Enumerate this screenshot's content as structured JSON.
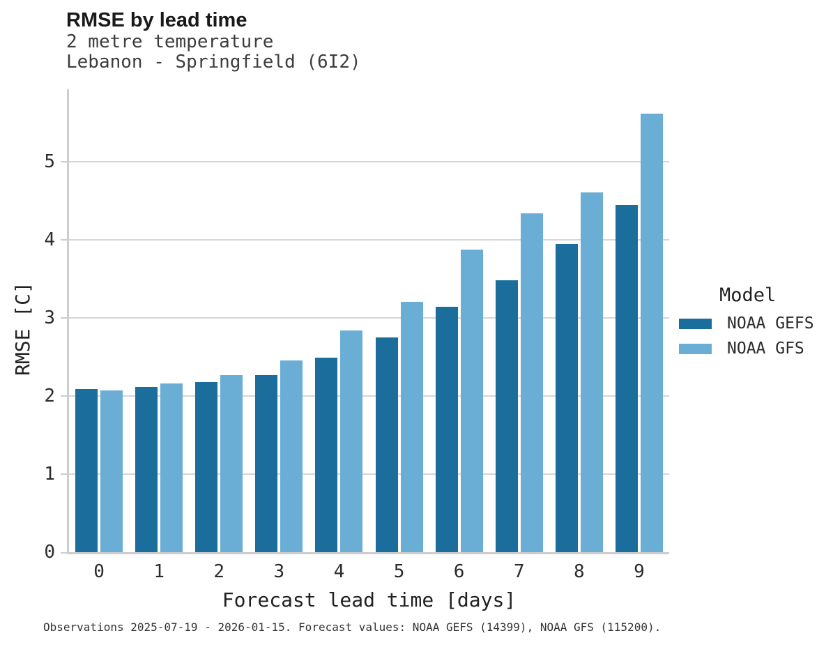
{
  "header": {
    "title": "RMSE by lead time",
    "subtitle_line1": "2 metre temperature",
    "subtitle_line2": "Lebanon - Springfield (6I2)"
  },
  "chart_data": {
    "type": "bar",
    "title": "RMSE by lead time",
    "subtitle": [
      "2 metre temperature",
      "Lebanon - Springfield (6I2)"
    ],
    "categories": [
      "0",
      "1",
      "2",
      "3",
      "4",
      "5",
      "6",
      "7",
      "8",
      "9"
    ],
    "series": [
      {
        "name": "NOAA GEFS",
        "color": "#1b6d9b",
        "values": [
          2.09,
          2.12,
          2.18,
          2.27,
          2.49,
          2.75,
          3.14,
          3.48,
          3.95,
          4.45
        ]
      },
      {
        "name": "NOAA GFS",
        "color": "#6aaed6",
        "values": [
          2.07,
          2.16,
          2.27,
          2.46,
          2.84,
          3.21,
          3.88,
          4.34,
          4.61,
          5.62
        ]
      }
    ],
    "xlabel": "Forecast lead time [days]",
    "ylabel": "RMSE [C]",
    "ylim": [
      0,
      5.93
    ],
    "yticks": [
      0,
      1,
      2,
      3,
      4,
      5
    ],
    "grid": "horizontal",
    "legend_position": "right"
  },
  "legend": {
    "title": "Model",
    "items": [
      {
        "label": "NOAA GEFS",
        "color": "#1b6d9b"
      },
      {
        "label": "NOAA GFS",
        "color": "#6aaed6"
      }
    ]
  },
  "footer": {
    "note": "Observations 2025-07-19 - 2026-01-15. Forecast values: NOAA GEFS (14399), NOAA GFS (115200)."
  },
  "colors": {
    "bar_dark": "#1b6d9b",
    "bar_light": "#6aaed6",
    "gridline": "#d6d6d6",
    "axis": "#cdcdcd"
  }
}
